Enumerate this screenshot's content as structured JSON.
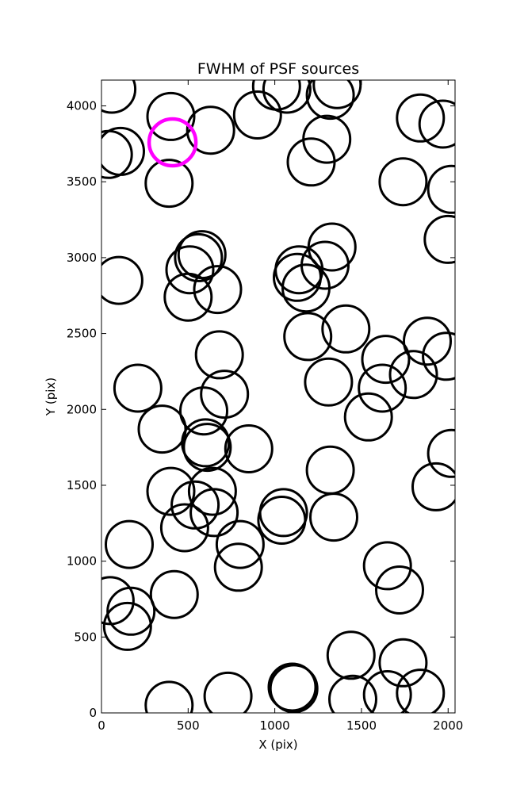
{
  "chart_data": {
    "type": "scatter",
    "title": "FWHM of PSF sources",
    "xlabel": "X (pix)",
    "ylabel": "Y (pix)",
    "xlim": [
      0,
      2040
    ],
    "ylim": [
      0,
      4170
    ],
    "xticks": [
      0,
      500,
      1000,
      1500,
      2000
    ],
    "yticks": [
      0,
      500,
      1000,
      1500,
      2000,
      2500,
      3000,
      3500,
      4000
    ],
    "grid": false,
    "marker": "open-circle",
    "fwhm_radius": 135,
    "series": [
      {
        "name": "",
        "color": "#000000",
        "points": [
          [
            60,
            4110
          ],
          [
            40,
            3680
          ],
          [
            110,
            3700
          ],
          [
            100,
            2850
          ],
          [
            210,
            2140
          ],
          [
            160,
            1110
          ],
          [
            50,
            740
          ],
          [
            170,
            670
          ],
          [
            150,
            570
          ],
          [
            400,
            3930
          ],
          [
            390,
            3490
          ],
          [
            630,
            3840
          ],
          [
            510,
            2920
          ],
          [
            580,
            3020
          ],
          [
            560,
            3000
          ],
          [
            500,
            2740
          ],
          [
            670,
            2790
          ],
          [
            680,
            2360
          ],
          [
            710,
            2100
          ],
          [
            590,
            1990
          ],
          [
            350,
            1870
          ],
          [
            600,
            1780
          ],
          [
            610,
            1750
          ],
          [
            850,
            1740
          ],
          [
            400,
            1460
          ],
          [
            640,
            1460
          ],
          [
            540,
            1370
          ],
          [
            650,
            1320
          ],
          [
            480,
            1220
          ],
          [
            800,
            1110
          ],
          [
            790,
            960
          ],
          [
            420,
            780
          ],
          [
            390,
            50
          ],
          [
            730,
            110
          ],
          [
            1100,
            170
          ],
          [
            1110,
            160
          ],
          [
            900,
            3940
          ],
          [
            1010,
            4130
          ],
          [
            1070,
            4110
          ],
          [
            1320,
            4070
          ],
          [
            1360,
            4140
          ],
          [
            1300,
            3780
          ],
          [
            1210,
            3630
          ],
          [
            1330,
            3070
          ],
          [
            1140,
            2920
          ],
          [
            1130,
            2870
          ],
          [
            1290,
            2950
          ],
          [
            1180,
            2800
          ],
          [
            1190,
            2480
          ],
          [
            1410,
            2530
          ],
          [
            1310,
            2180
          ],
          [
            1640,
            2330
          ],
          [
            1620,
            2140
          ],
          [
            1800,
            2230
          ],
          [
            1540,
            1950
          ],
          [
            1320,
            1600
          ],
          [
            1050,
            1320
          ],
          [
            1040,
            1270
          ],
          [
            1340,
            1290
          ],
          [
            1650,
            970
          ],
          [
            1720,
            810
          ],
          [
            1440,
            380
          ],
          [
            1450,
            90
          ],
          [
            1650,
            120
          ],
          [
            1740,
            330
          ],
          [
            1840,
            130
          ],
          [
            1740,
            3500
          ],
          [
            1840,
            3920
          ],
          [
            1970,
            3880
          ],
          [
            2020,
            3450
          ],
          [
            2000,
            3120
          ],
          [
            1880,
            2450
          ],
          [
            1990,
            2350
          ],
          [
            2020,
            1710
          ],
          [
            1930,
            1490
          ]
        ]
      },
      {
        "name": "",
        "color": "#ff00ff",
        "points": [
          [
            410,
            3760
          ]
        ]
      }
    ]
  }
}
